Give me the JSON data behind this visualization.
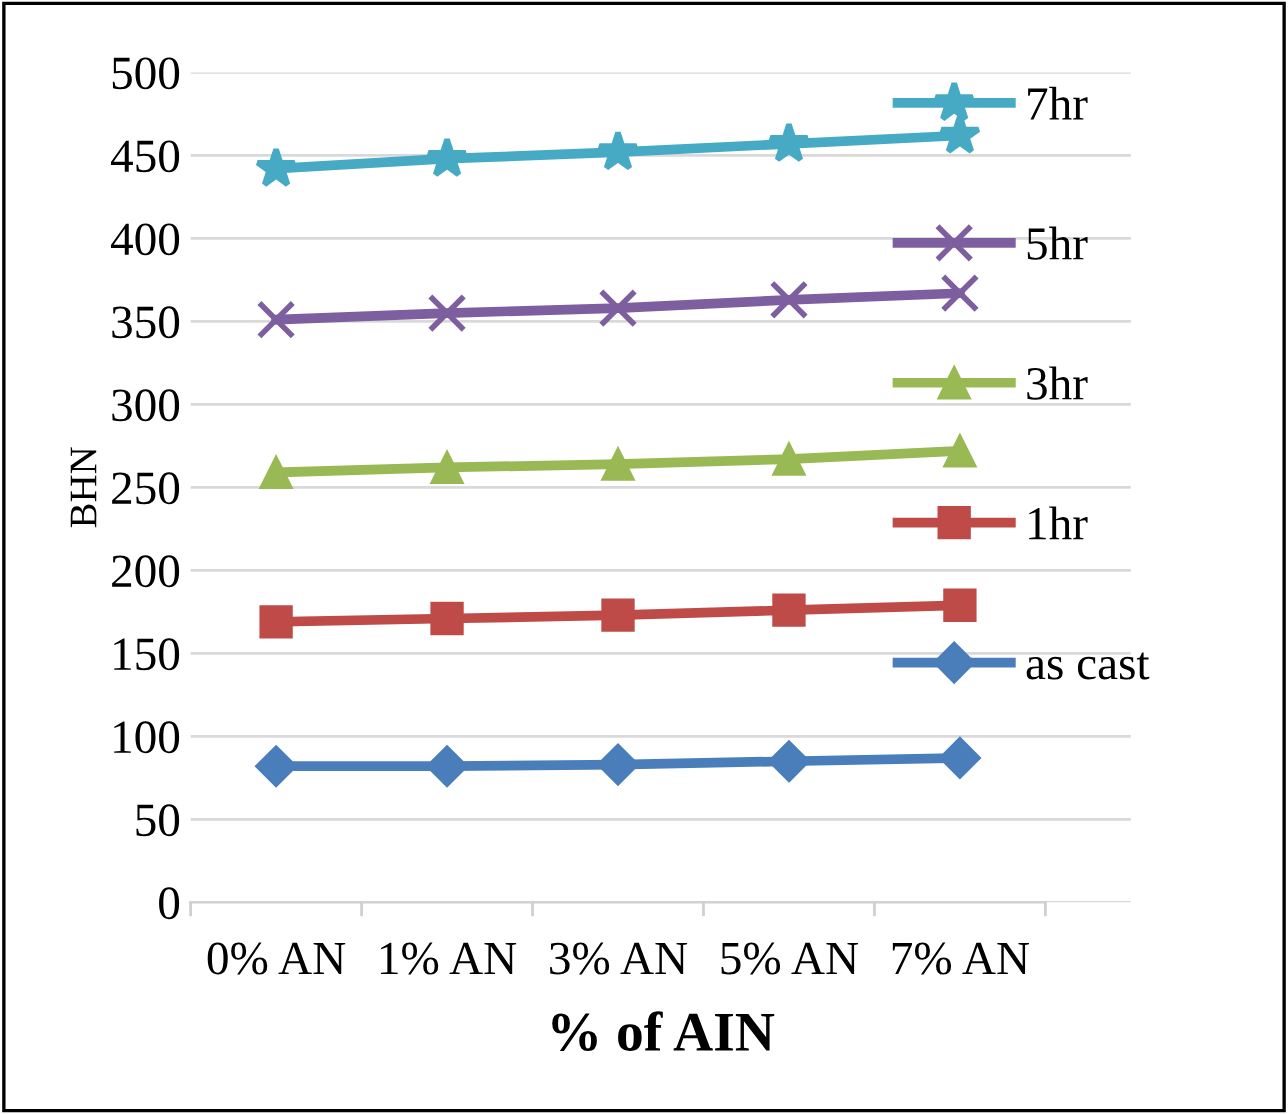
{
  "chart_data": {
    "type": "line",
    "xlabel": "% of AIN",
    "ylabel": "BHN",
    "categories": [
      "0% AN",
      "1% AN",
      "3% AN",
      "5% AN",
      "7% AN"
    ],
    "series": [
      {
        "name": "as cast",
        "color": "#4a7ebb",
        "marker": "diamond",
        "values": [
          82,
          82,
          83,
          85,
          87
        ]
      },
      {
        "name": "1hr",
        "color": "#be4b48",
        "marker": "square",
        "values": [
          169,
          171,
          173,
          176,
          179
        ]
      },
      {
        "name": "3hr",
        "color": "#98b954",
        "marker": "triangle",
        "values": [
          259,
          262,
          264,
          267,
          272
        ]
      },
      {
        "name": "5hr",
        "color": "#7d5fa0",
        "marker": "cross",
        "values": [
          351,
          355,
          358,
          363,
          367
        ]
      },
      {
        "name": "7hr",
        "color": "#46aac5",
        "marker": "star",
        "values": [
          442,
          448,
          452,
          457,
          462
        ]
      }
    ],
    "ylim": [
      0,
      500
    ],
    "yticks": [
      0,
      50,
      100,
      150,
      200,
      250,
      300,
      350,
      400,
      450,
      500
    ],
    "grid": "y",
    "legend": "right",
    "line_style": "solid"
  }
}
